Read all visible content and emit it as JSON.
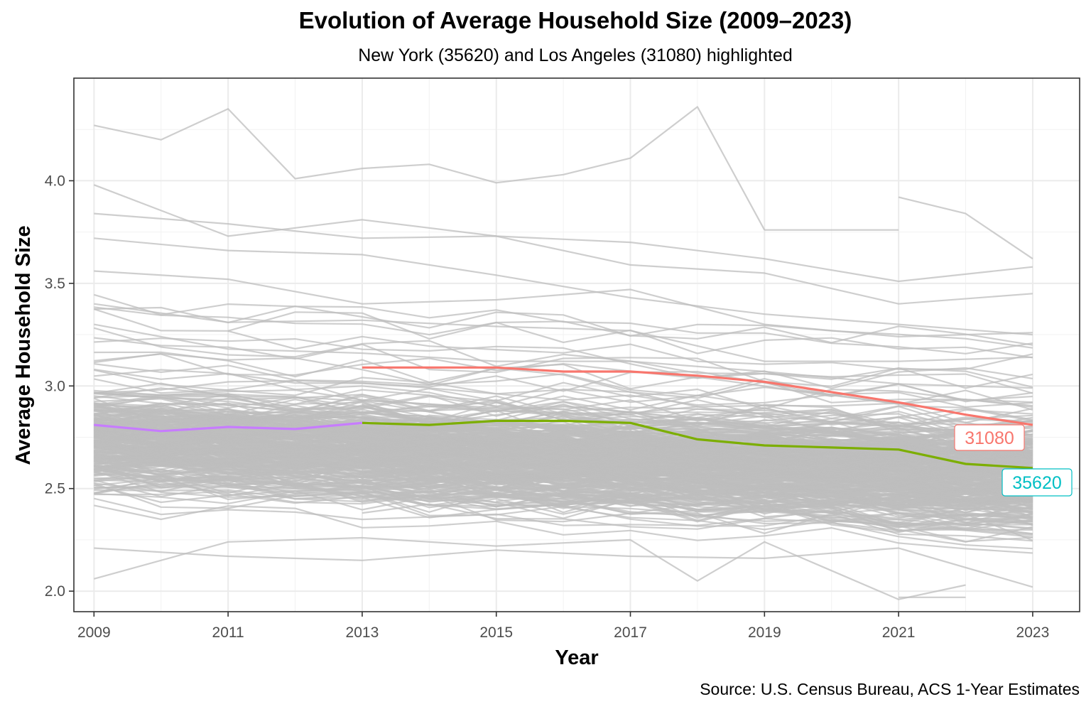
{
  "chart_data": {
    "type": "line",
    "title": "Evolution of Average Household Size (2009–2023)",
    "subtitle": "New York (35620) and Los Angeles (31080) highlighted",
    "xlabel": "Year",
    "ylabel": "Average Household Size",
    "caption": "Source: U.S. Census Bureau, ACS 1-Year Estimates",
    "xlim": [
      2008.7,
      2023.7
    ],
    "ylim": [
      1.9,
      4.5
    ],
    "x_ticks": [
      "2009",
      "2011",
      "2013",
      "2015",
      "2017",
      "2019",
      "2021",
      "2023"
    ],
    "y_ticks": [
      "2.0",
      "2.5",
      "3.0",
      "3.5",
      "4.0"
    ],
    "grid": true,
    "background_series_color": "#bebebe",
    "highlighted_series": [
      {
        "name": "31080",
        "color": "#f8766d",
        "x": [
          2013,
          2014,
          2015,
          2016,
          2017,
          2018,
          2019,
          2020,
          2021,
          2022,
          2023
        ],
        "values": [
          3.09,
          3.09,
          3.09,
          3.07,
          3.07,
          3.05,
          3.02,
          2.97,
          2.92,
          2.86,
          2.81
        ]
      },
      {
        "name": "35620",
        "color": "#7cae00",
        "x": [
          2013,
          2014,
          2015,
          2016,
          2017,
          2018,
          2019,
          2020,
          2021,
          2022,
          2023
        ],
        "values": [
          2.82,
          2.81,
          2.83,
          2.83,
          2.82,
          2.74,
          2.71,
          2.7,
          2.69,
          2.62,
          2.6
        ]
      },
      {
        "name": "",
        "color": "#c77cff",
        "x": [
          2009,
          2010,
          2011,
          2012,
          2013
        ],
        "values": [
          2.81,
          2.78,
          2.8,
          2.79,
          2.82
        ]
      }
    ],
    "labels": [
      {
        "text": "31080",
        "color": "#f8766d"
      },
      {
        "text": "35620",
        "color": "#00bfc4"
      }
    ],
    "background_series_sample": [
      {
        "x": [
          2009,
          2010,
          2011,
          2012,
          2013,
          2014,
          2015,
          2016,
          2017,
          2018,
          2019
        ],
        "values": [
          4.27,
          4.2,
          4.35,
          4.01,
          4.06,
          4.08,
          3.99,
          4.03,
          4.11,
          4.36,
          3.76
        ]
      },
      {
        "x": [
          2019,
          2020,
          2021
        ],
        "values": [
          3.76,
          3.76,
          3.76
        ]
      },
      {
        "x": [
          2021,
          2022,
          2023
        ],
        "values": [
          3.92,
          3.84,
          3.62
        ]
      },
      {
        "x": [
          2009,
          2011,
          2013,
          2015,
          2017,
          2019,
          2021,
          2023
        ],
        "values": [
          3.98,
          3.73,
          3.81,
          3.73,
          3.7,
          3.62,
          3.51,
          3.58
        ]
      },
      {
        "x": [
          2009,
          2011,
          2013,
          2015,
          2017,
          2019,
          2021,
          2023
        ],
        "values": [
          3.84,
          3.79,
          3.72,
          3.73,
          3.59,
          3.55,
          3.4,
          3.45
        ]
      },
      {
        "x": [
          2009,
          2011,
          2013,
          2015,
          2017,
          2019,
          2021,
          2023
        ],
        "values": [
          3.72,
          3.66,
          3.64,
          3.54,
          3.43,
          3.35,
          3.3,
          3.25
        ]
      },
      {
        "x": [
          2009,
          2011,
          2013,
          2015,
          2017,
          2019,
          2021,
          2023
        ],
        "values": [
          3.56,
          3.52,
          3.4,
          3.42,
          3.47,
          3.3,
          3.24,
          3.26
        ]
      },
      {
        "x": [
          2009,
          2011,
          2013,
          2015,
          2017,
          2019,
          2021,
          2023
        ],
        "values": [
          3.4,
          3.31,
          3.32,
          3.29,
          3.27,
          3.12,
          3.12,
          3.14
        ]
      },
      {
        "x": [
          2009,
          2011,
          2013,
          2015,
          2017,
          2019,
          2021,
          2023
        ],
        "values": [
          3.3,
          3.18,
          3.16,
          3.12,
          3.12,
          3.07,
          3.01,
          2.99
        ]
      },
      {
        "x": [
          2009,
          2011,
          2013,
          2015,
          2017,
          2019,
          2021,
          2023
        ],
        "values": [
          2.21,
          2.17,
          2.15,
          2.2,
          2.17,
          2.16,
          2.21,
          2.02
        ]
      },
      {
        "x": [
          2009,
          2011,
          2013,
          2015,
          2017,
          2018,
          2019,
          2021,
          2022
        ],
        "values": [
          2.06,
          2.24,
          2.26,
          2.22,
          2.25,
          2.05,
          2.24,
          1.96,
          2.03
        ]
      },
      {
        "x": [
          2021,
          2022
        ],
        "values": [
          1.97,
          1.97
        ]
      }
    ]
  }
}
